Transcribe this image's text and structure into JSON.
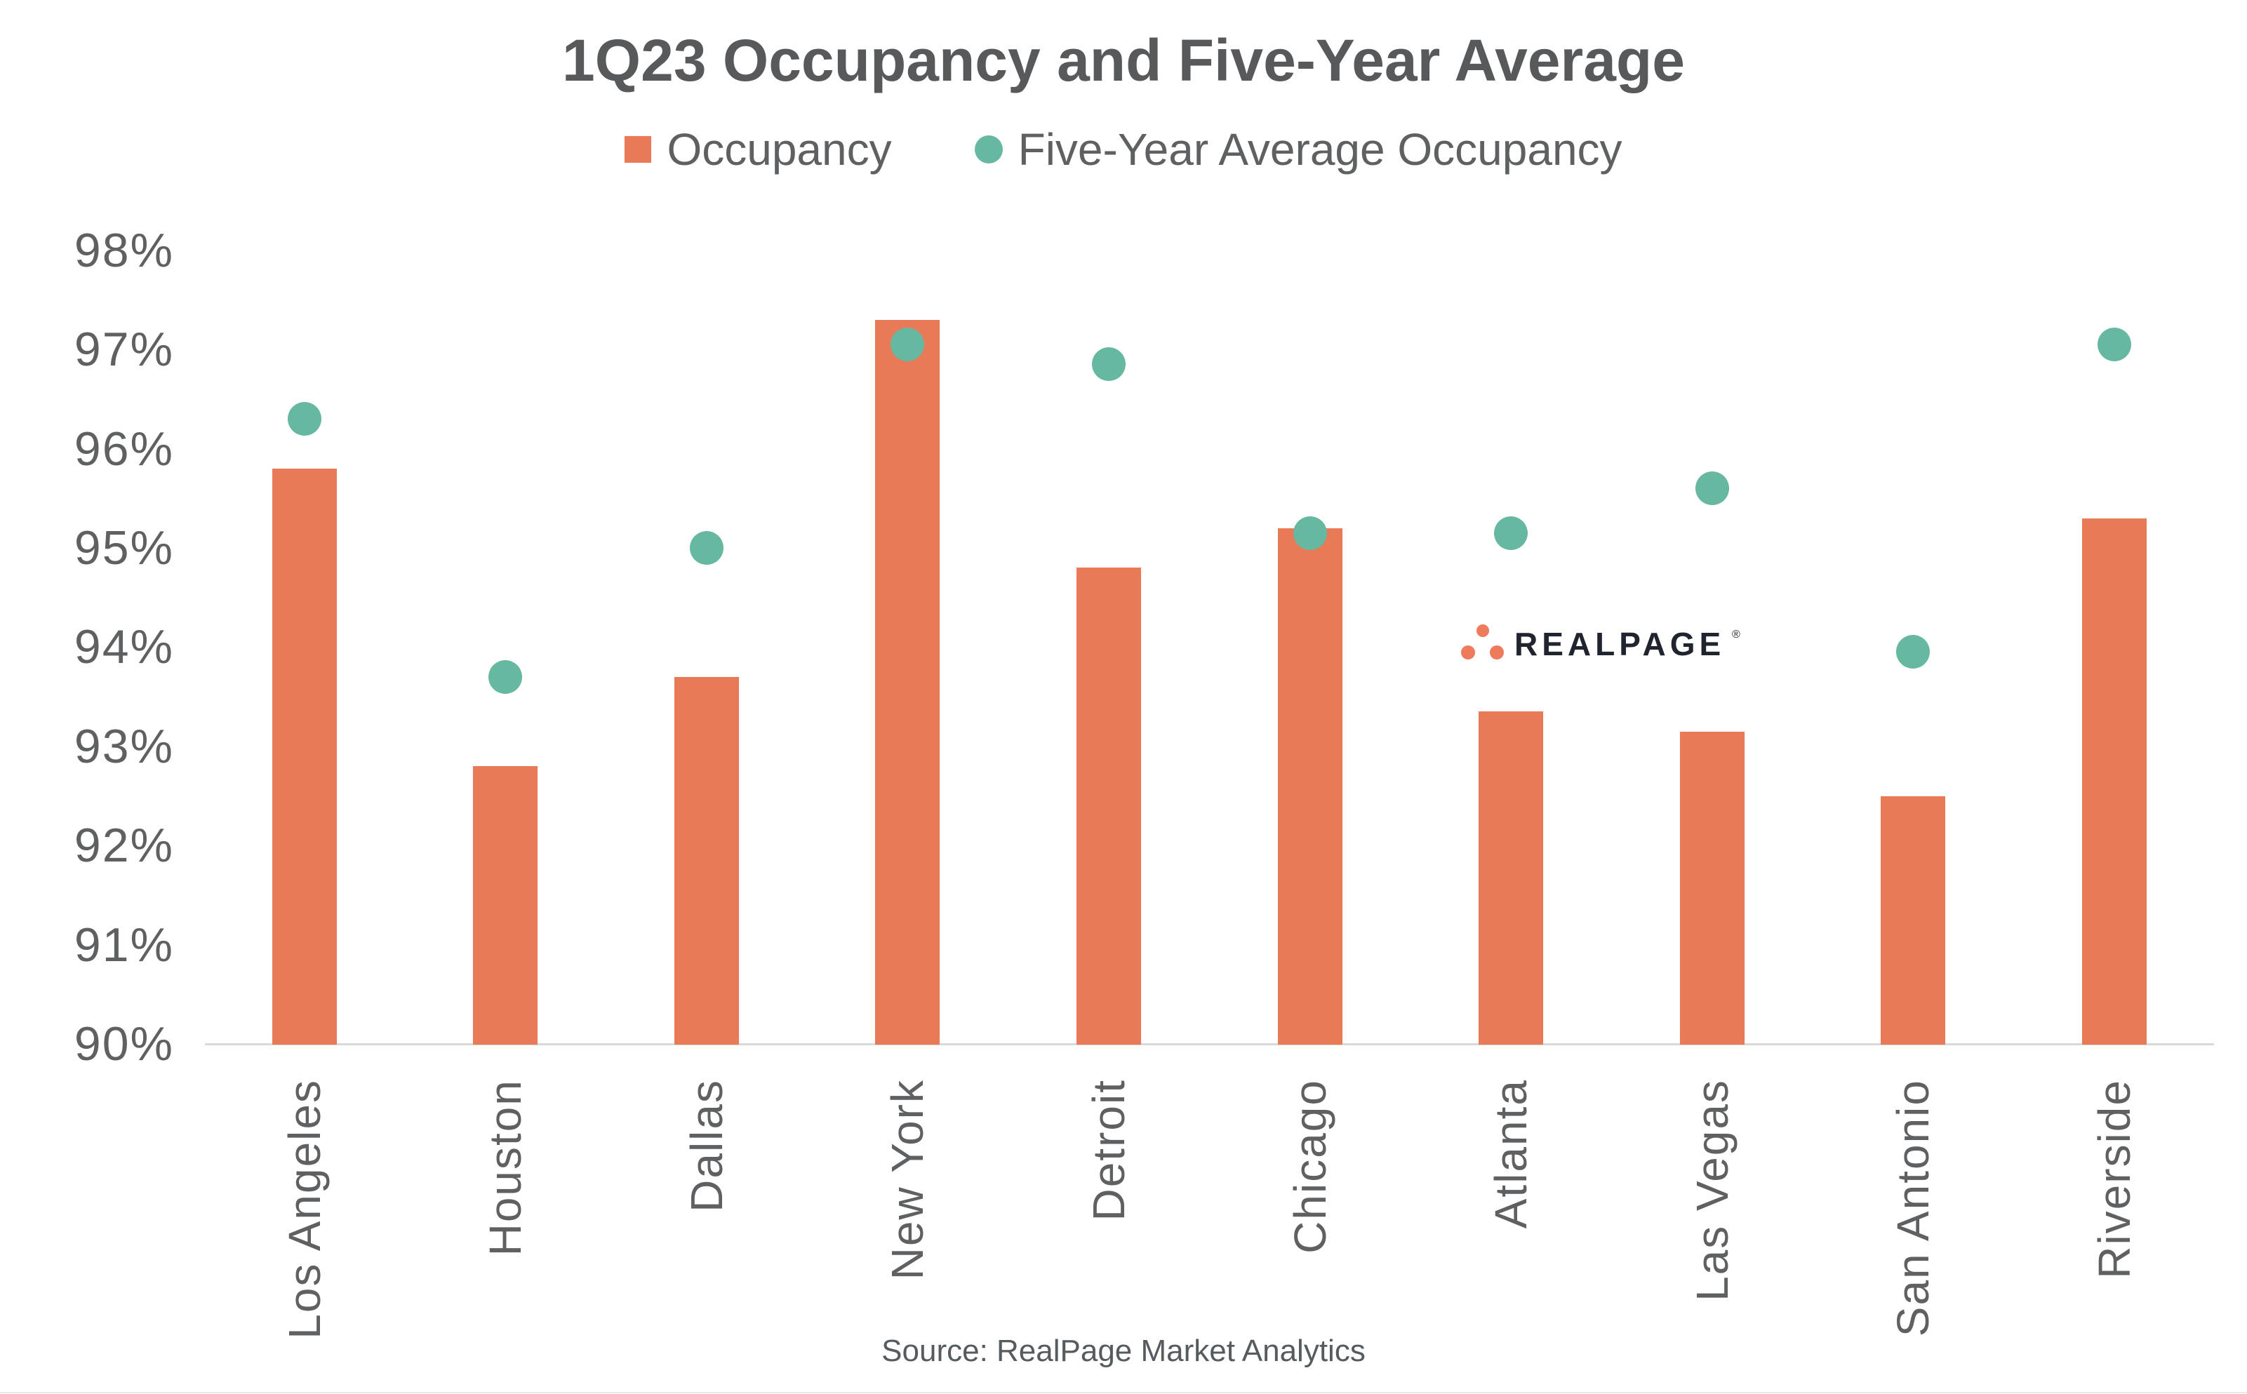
{
  "title": "1Q23 Occupancy and Five-Year Average",
  "legend": {
    "items": [
      {
        "label": "Occupancy",
        "marker": "square"
      },
      {
        "label": "Five-Year Average Occupancy",
        "marker": "circle"
      }
    ]
  },
  "source_note": "Source: RealPage Market Analytics",
  "watermark": {
    "brand": "REALPAGE",
    "registered_mark": "®"
  },
  "colors": {
    "background": "#FFFFFF",
    "occupancy_bar": "#E87A58",
    "five_year_dot": "#66B8A0",
    "title_text": "#58595B",
    "axis_text": "#5E6062",
    "axis_line": "#D9D9D9",
    "source_text": "#555B5E",
    "logo_text": "#20242E",
    "logo_dots": "#EE7B5B"
  },
  "chart_data": {
    "type": "bar",
    "title": "1Q23 Occupancy and Five-Year Average",
    "categories": [
      "Los Angeles",
      "Houston",
      "Dallas",
      "New York",
      "Detroit",
      "Chicago",
      "Atlanta",
      "Las Vegas",
      "San Antonio",
      "Riverside"
    ],
    "series": [
      {
        "name": "Occupancy",
        "type": "bar",
        "values": [
          95.8,
          92.8,
          93.7,
          97.3,
          94.8,
          95.2,
          93.35,
          93.15,
          92.5,
          95.3
        ]
      },
      {
        "name": "Five-Year Average Occupancy",
        "type": "scatter",
        "values": [
          96.3,
          93.7,
          95.0,
          97.05,
          96.85,
          95.15,
          95.15,
          95.6,
          93.95,
          97.05
        ]
      }
    ],
    "xlabel": "",
    "ylabel": "",
    "ylim": [
      90,
      98
    ],
    "ytick_step": 1,
    "ytick_suffix": "%",
    "yticks": [
      "90%",
      "91%",
      "92%",
      "93%",
      "94%",
      "95%",
      "96%",
      "97%",
      "98%"
    ],
    "grid": false,
    "legend_position": "top"
  }
}
